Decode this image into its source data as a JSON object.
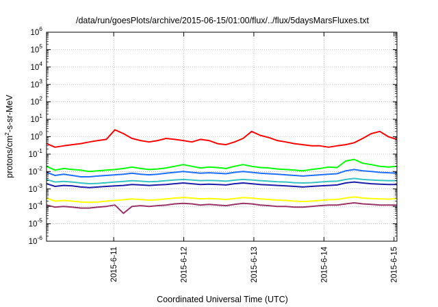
{
  "chart_data": {
    "type": "line",
    "title": "/data/run/goesPlots/archive/2015-06-15/01:00/flux/../flux/5daysMarsFluxes.txt",
    "xlabel": "Coordinated Universal Time (UTC)",
    "ylabel": {
      "pre": "protons/cm",
      "sup": "2",
      "post": "-s-sr-MeV"
    },
    "yscale": "log",
    "ylim": [
      1e-06,
      1000000.0
    ],
    "xlim": [
      "2015-06-10 01:00",
      "2015-06-15 01:00"
    ],
    "grid": true,
    "x_ticks": [
      "2015-6-11",
      "2015-6-12",
      "2015-6-13",
      "2015-6-14",
      "2015-6-15"
    ],
    "y_ticks": [
      {
        "base": "10",
        "exp": "-6"
      },
      {
        "base": "10",
        "exp": "-5"
      },
      {
        "base": "10",
        "exp": "-4"
      },
      {
        "base": "10",
        "exp": "-3"
      },
      {
        "base": "10",
        "exp": "-2"
      },
      {
        "base": "10",
        "exp": "-1"
      },
      {
        "base": "10",
        "exp": "0"
      },
      {
        "base": "10",
        "exp": "1"
      },
      {
        "base": "10",
        "exp": "2"
      },
      {
        "base": "10",
        "exp": "3"
      },
      {
        "base": "10",
        "exp": "4"
      },
      {
        "base": "10",
        "exp": "5"
      },
      {
        "base": "10",
        "exp": "6"
      }
    ],
    "series": [
      {
        "color": "#ff0000",
        "values": [
          0.4,
          0.25,
          0.3,
          0.35,
          0.4,
          0.5,
          0.6,
          0.7,
          2.5,
          1.5,
          0.8,
          0.6,
          0.5,
          0.6,
          0.8,
          0.7,
          0.6,
          0.5,
          0.7,
          0.6,
          0.4,
          0.35,
          0.5,
          0.8,
          2.0,
          1.2,
          0.9,
          0.6,
          0.5,
          0.4,
          0.35,
          0.3,
          0.3,
          0.25,
          0.3,
          0.35,
          0.45,
          0.8,
          1.5,
          2.0,
          1.0,
          0.7
        ]
      },
      {
        "color": "#00ff00",
        "values": [
          0.02,
          0.012,
          0.015,
          0.013,
          0.012,
          0.01,
          0.011,
          0.012,
          0.013,
          0.015,
          0.018,
          0.015,
          0.013,
          0.014,
          0.016,
          0.02,
          0.025,
          0.02,
          0.016,
          0.018,
          0.017,
          0.015,
          0.02,
          0.025,
          0.02,
          0.017,
          0.016,
          0.014,
          0.013,
          0.012,
          0.011,
          0.013,
          0.015,
          0.018,
          0.017,
          0.04,
          0.05,
          0.03,
          0.025,
          0.02,
          0.018,
          0.02
        ]
      },
      {
        "color": "#1e6fff",
        "values": [
          0.009,
          0.006,
          0.007,
          0.006,
          0.005,
          0.005,
          0.0055,
          0.006,
          0.0065,
          0.007,
          0.008,
          0.007,
          0.0065,
          0.007,
          0.008,
          0.009,
          0.01,
          0.009,
          0.008,
          0.0085,
          0.008,
          0.0075,
          0.009,
          0.01,
          0.009,
          0.008,
          0.0075,
          0.007,
          0.0065,
          0.006,
          0.0055,
          0.006,
          0.0065,
          0.007,
          0.0075,
          0.011,
          0.013,
          0.011,
          0.01,
          0.009,
          0.0085,
          0.008
        ]
      },
      {
        "color": "#35c2c2",
        "values": [
          0.0035,
          0.0025,
          0.0027,
          0.0025,
          0.0022,
          0.002,
          0.0021,
          0.0023,
          0.0025,
          0.0027,
          0.003,
          0.0028,
          0.0026,
          0.0027,
          0.003,
          0.0033,
          0.0035,
          0.0033,
          0.003,
          0.0031,
          0.003,
          0.0028,
          0.0032,
          0.0035,
          0.0033,
          0.003,
          0.0028,
          0.0026,
          0.0025,
          0.0023,
          0.0022,
          0.0023,
          0.0025,
          0.0027,
          0.0028,
          0.0035,
          0.004,
          0.0035,
          0.0033,
          0.0031,
          0.003,
          0.003
        ]
      },
      {
        "color": "#1c1ca8",
        "values": [
          0.002,
          0.0014,
          0.0016,
          0.0015,
          0.0013,
          0.0012,
          0.0013,
          0.0014,
          0.0015,
          0.0016,
          0.0018,
          0.0017,
          0.0016,
          0.0017,
          0.0018,
          0.002,
          0.0022,
          0.002,
          0.0018,
          0.0019,
          0.0018,
          0.0017,
          0.002,
          0.0022,
          0.002,
          0.0018,
          0.0017,
          0.0016,
          0.0015,
          0.0014,
          0.0013,
          0.0014,
          0.0015,
          0.0016,
          0.0017,
          0.0022,
          0.0025,
          0.0022,
          0.002,
          0.0019,
          0.0018,
          0.0018
        ]
      },
      {
        "color": "#ffff00",
        "values": [
          0.0003,
          0.0002,
          0.00022,
          0.0002,
          0.00018,
          0.00017,
          0.00018,
          0.0002,
          0.00022,
          0.00024,
          0.00027,
          0.00025,
          0.00023,
          0.00024,
          0.00027,
          0.0003,
          0.00032,
          0.0003,
          0.00027,
          0.00028,
          0.00027,
          0.00025,
          0.00028,
          0.00032,
          0.0003,
          0.00027,
          0.00025,
          0.00023,
          0.00022,
          0.0002,
          0.00019,
          0.0002,
          0.00022,
          0.00024,
          0.00025,
          0.0003,
          0.00035,
          0.0003,
          0.00028,
          0.00027,
          0.00026,
          0.00028
        ]
      },
      {
        "color": "#993366",
        "values": [
          0.00012,
          9e-05,
          0.0001,
          9e-05,
          8e-05,
          8e-05,
          9e-05,
          0.0001,
          0.00012,
          4e-05,
          0.0001,
          0.00011,
          0.0001,
          0.00011,
          0.00012,
          0.00014,
          0.00015,
          0.00014,
          0.00012,
          0.00013,
          0.00012,
          0.00011,
          0.00013,
          0.00015,
          0.00014,
          0.00012,
          0.00011,
          0.0001,
          0.0001,
          9e-05,
          9e-05,
          0.0001,
          0.00011,
          0.00012,
          0.00012,
          0.00014,
          0.00016,
          0.00014,
          0.00013,
          0.00012,
          0.00012,
          0.00012
        ]
      }
    ]
  }
}
